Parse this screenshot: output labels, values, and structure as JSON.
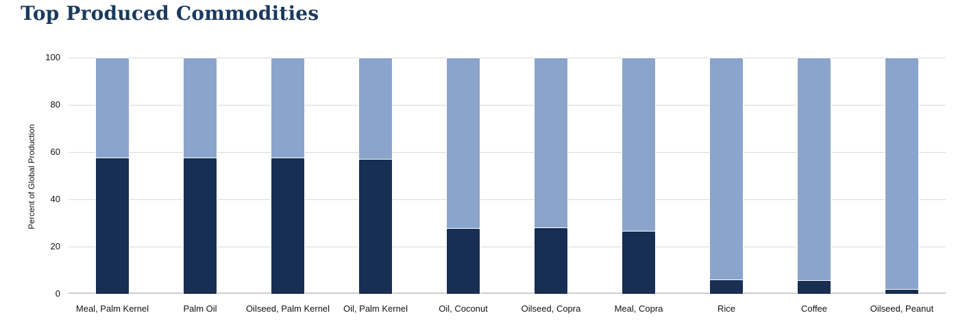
{
  "header": {
    "title": "Top Produced Commodities"
  },
  "colors": {
    "title_text": "#1a3a5f",
    "bar_dark": "#182e52",
    "bar_light": "#8ba4cc",
    "gridline": "#d9d9d9",
    "axis_line": "#c9cdd1",
    "axis_text": "#111111"
  },
  "chart_data": {
    "type": "bar",
    "stacked": true,
    "title": "Top Produced Commodities",
    "xlabel": "",
    "ylabel": "Percent of Global Production",
    "ylim": [
      0,
      100
    ],
    "yticks": [
      0,
      20,
      40,
      60,
      80,
      100
    ],
    "grid": true,
    "legend": false,
    "categories": [
      "Meal, Palm Kernel",
      "Palm Oil",
      "Oilseed, Palm Kernel",
      "Oil, Palm Kernel",
      "Oil, Coconut",
      "Oilseed, Copra",
      "Meal, Copra",
      "Rice",
      "Coffee",
      "Oilseed, Peanut"
    ],
    "series": [
      {
        "name": "bottom-segment",
        "color": "#182e52",
        "values": [
          57.7,
          57.7,
          57.7,
          57.2,
          27.9,
          28.2,
          26.8,
          6.0,
          5.8,
          2.0
        ]
      },
      {
        "name": "top-segment",
        "color": "#8ba4cc",
        "values": [
          42.3,
          42.3,
          42.3,
          42.8,
          72.1,
          71.8,
          73.2,
          94.0,
          94.2,
          98.0
        ]
      }
    ]
  }
}
